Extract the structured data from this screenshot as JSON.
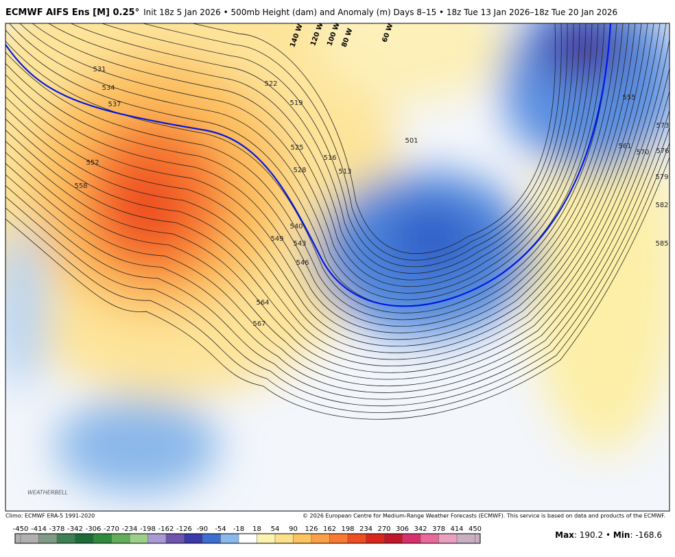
{
  "header": {
    "model": "ECMWF AIFS Ens [M] 0.25°",
    "description": "Init 18z 5 Jan 2026 • 500mb Height (dam) and Anomaly (m) Days 8–15 • 18z Tue 13 Jan 2026–18z Tue 20 Jan 2026"
  },
  "map": {
    "contour_labels": [
      531,
      534,
      537,
      552,
      558,
      522,
      519,
      525,
      528,
      516,
      513,
      501,
      540,
      543,
      546,
      549,
      564,
      567,
      555,
      561,
      570,
      573,
      576,
      579,
      582,
      585
    ],
    "longitude_labels": [
      "140 W",
      "120 W",
      "100 W",
      "80 W",
      "60 W"
    ],
    "logo": "WEATHERBELL"
  },
  "footer": {
    "climo": "Climo: ECMWF ERA-5 1991-2020",
    "copyright": "© 2026 European Centre for Medium-Range Weather Forecasts (ECMWF). This service is based on data and products of the ECMWF."
  },
  "colorbar": {
    "ticks": [
      -450,
      -414,
      -378,
      -342,
      -306,
      -270,
      -234,
      -198,
      -162,
      -126,
      -90,
      -54,
      -18,
      18,
      54,
      90,
      126,
      162,
      198,
      234,
      270,
      306,
      342,
      378,
      414,
      450
    ],
    "colors": [
      "#b0b0b0",
      "#7f9a86",
      "#3f7f55",
      "#1e6b38",
      "#2f8a3e",
      "#63ac59",
      "#9bcf8a",
      "#a99ad2",
      "#6e55ae",
      "#3b3aa8",
      "#3d6fd0",
      "#8ab8ea",
      "#ffffff",
      "#fdf3b0",
      "#fde08a",
      "#fdc360",
      "#fca048",
      "#f77a32",
      "#ee4e22",
      "#d8281c",
      "#c0182a",
      "#d8306c",
      "#e86a9c",
      "#e9a0c0",
      "#c8b0c0"
    ]
  },
  "stats": {
    "max_label": "Max",
    "max": 190.2,
    "min_label": "Min",
    "min": -168.6
  }
}
